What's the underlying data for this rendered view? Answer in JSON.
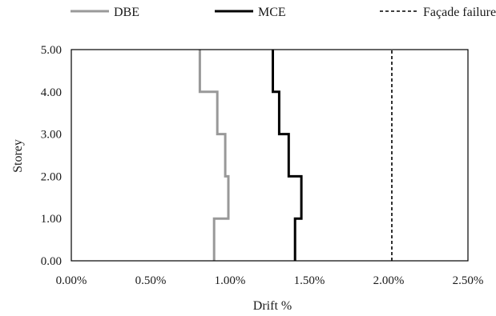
{
  "chart_data": {
    "type": "line",
    "xlabel": "Drift %",
    "ylabel": "Storey",
    "xlim": [
      0,
      0.025
    ],
    "ylim": [
      0,
      5
    ],
    "x_ticks": [
      "0.00%",
      "0.50%",
      "1.00%",
      "1.50%",
      "2.00%",
      "2.50%"
    ],
    "y_ticks": [
      "0.00",
      "1.00",
      "2.00",
      "3.00",
      "4.00",
      "5.00"
    ],
    "grid": false,
    "legend_position": "top",
    "series": [
      {
        "name": "DBE",
        "color": "#999999",
        "style": "solid",
        "points": [
          [
            0.009,
            0
          ],
          [
            0.009,
            1
          ],
          [
            0.0099,
            1
          ],
          [
            0.0099,
            2
          ],
          [
            0.0097,
            2
          ],
          [
            0.0097,
            3
          ],
          [
            0.0092,
            3
          ],
          [
            0.0092,
            4
          ],
          [
            0.0081,
            4
          ],
          [
            0.0081,
            5
          ]
        ]
      },
      {
        "name": "MCE",
        "color": "#000000",
        "style": "solid",
        "points": [
          [
            0.0141,
            0
          ],
          [
            0.0141,
            1
          ],
          [
            0.0145,
            1
          ],
          [
            0.0145,
            2
          ],
          [
            0.0137,
            2
          ],
          [
            0.0137,
            3
          ],
          [
            0.0131,
            3
          ],
          [
            0.0131,
            4
          ],
          [
            0.0127,
            4
          ],
          [
            0.0127,
            5
          ]
        ]
      },
      {
        "name": "Façade failure",
        "color": "#000000",
        "style": "dashed",
        "points": [
          [
            0.0202,
            0
          ],
          [
            0.0202,
            5
          ]
        ]
      }
    ]
  }
}
